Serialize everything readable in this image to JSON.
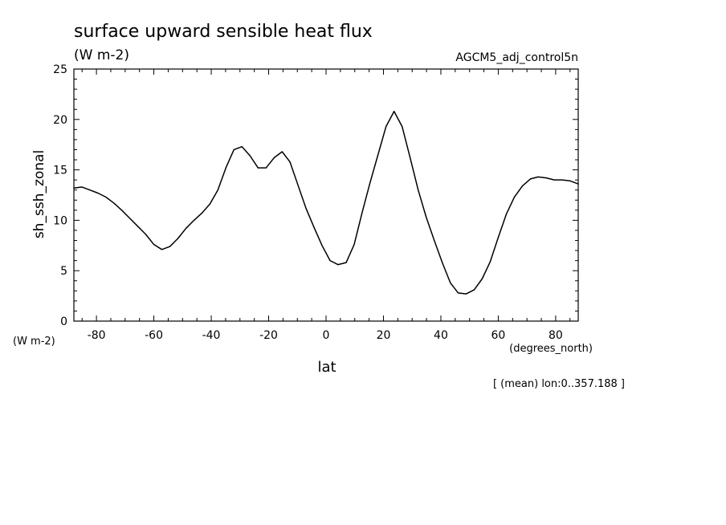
{
  "chart_data": {
    "type": "line",
    "title": "surface upward sensible heat flux",
    "subtitle": "(W m-2)",
    "run_label": "AGCM5_adj_control5n",
    "xlabel": "lat",
    "x_units": "(degrees_north)",
    "ylabel": "sh_ssh_zonal",
    "y_units": "(W m-2)",
    "footer": "[ (mean) lon:0..357.188 ]",
    "xlim": [
      -87.86,
      87.86
    ],
    "ylim": [
      0,
      25
    ],
    "x_ticks": [
      "-80",
      "-60",
      "-40",
      "-20",
      "0",
      "20",
      "40",
      "60",
      "80"
    ],
    "y_ticks": [
      "0",
      "5",
      "10",
      "15",
      "20",
      "25"
    ],
    "grid": false,
    "line_color": "#000000",
    "x": [
      -87.9,
      -85.1,
      -82.3,
      -79.5,
      -76.7,
      -73.9,
      -71.2,
      -68.4,
      -65.6,
      -62.8,
      -60.0,
      -57.2,
      -54.4,
      -51.6,
      -48.8,
      -46.0,
      -43.3,
      -40.5,
      -37.7,
      -34.9,
      -32.1,
      -29.3,
      -26.5,
      -23.7,
      -20.9,
      -18.1,
      -15.3,
      -12.6,
      -9.8,
      -7.0,
      -4.2,
      -1.4,
      1.4,
      4.2,
      7.0,
      9.8,
      12.6,
      15.3,
      18.1,
      20.9,
      23.7,
      26.5,
      29.3,
      32.1,
      34.9,
      37.7,
      40.5,
      43.3,
      46.0,
      48.8,
      51.6,
      54.4,
      57.2,
      60.0,
      62.8,
      65.6,
      68.4,
      71.2,
      73.9,
      76.7,
      79.5,
      82.3,
      85.1,
      87.9
    ],
    "y": [
      13.2,
      13.3,
      13.0,
      12.7,
      12.3,
      11.7,
      11.0,
      10.2,
      9.4,
      8.6,
      7.6,
      7.1,
      7.4,
      8.2,
      9.2,
      10.0,
      10.7,
      11.6,
      13.0,
      15.2,
      17.0,
      17.3,
      16.4,
      15.2,
      15.2,
      16.2,
      16.8,
      15.8,
      13.5,
      11.2,
      9.3,
      7.5,
      6.0,
      5.6,
      5.8,
      7.6,
      10.8,
      13.7,
      16.5,
      19.3,
      20.8,
      19.3,
      16.2,
      13.0,
      10.3,
      8.0,
      5.8,
      3.8,
      2.8,
      2.7,
      3.1,
      4.2,
      5.9,
      8.3,
      10.6,
      12.3,
      13.4,
      14.1,
      14.3,
      14.2,
      14.0,
      14.0,
      13.9,
      13.6
    ]
  }
}
